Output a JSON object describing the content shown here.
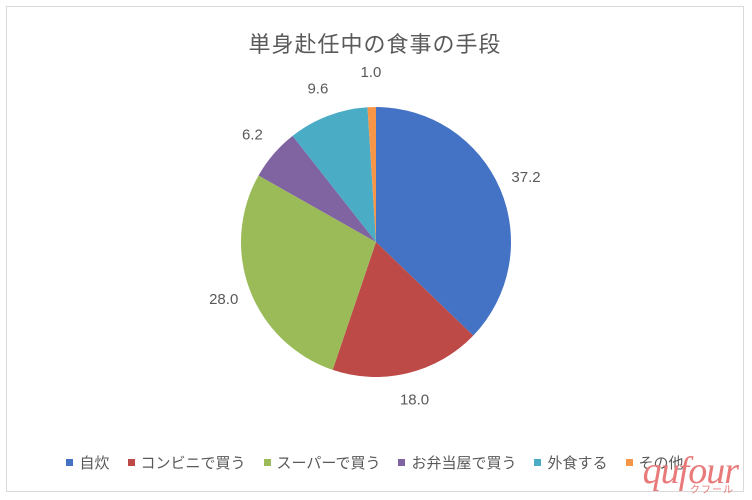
{
  "chart": {
    "type": "pie",
    "title": "単身赴任中の食事の手段",
    "title_fontsize": 22,
    "title_color": "#595959",
    "background_color": "#ffffff",
    "border_color": "#d9d9d9",
    "pie_radius": 135,
    "start_angle_deg": -90,
    "label_color": "#595959",
    "label_fontsize": 15,
    "legend_fontsize": 15,
    "legend_marker_size": 7,
    "slices": [
      {
        "label": "自炊",
        "value": 37.2,
        "color": "#4472c4"
      },
      {
        "label": "コンビニで買う",
        "value": 18.0,
        "color": "#bd4a46"
      },
      {
        "label": "スーパーで買う",
        "value": 28.0,
        "color": "#9bbb59"
      },
      {
        "label": "お弁当屋で買う",
        "value": 6.2,
        "color": "#8064a2"
      },
      {
        "label": "外食する",
        "value": 9.6,
        "color": "#4bacc6"
      },
      {
        "label": "その他",
        "value": 1.0,
        "color": "#f79646"
      }
    ]
  },
  "brand": {
    "name": "qufour",
    "kana": "クフール",
    "color": "#e87b7a",
    "main_fontsize": 38,
    "sub_fontsize": 10
  }
}
